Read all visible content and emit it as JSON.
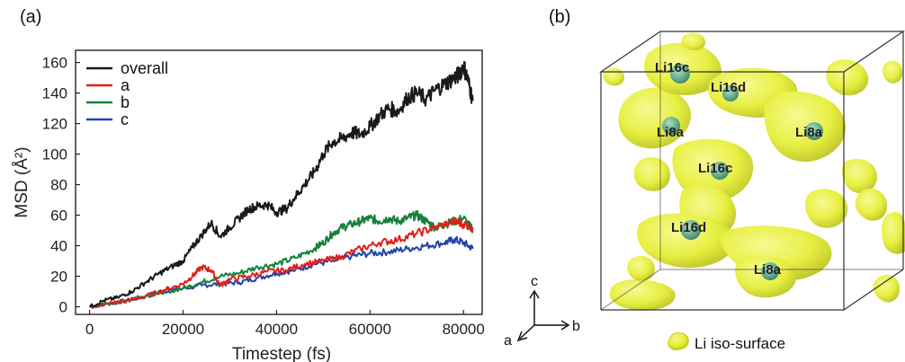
{
  "panel_a_label": "(a)",
  "panel_b_label": "(b)",
  "chart_data": {
    "type": "line",
    "title": "",
    "xlabel": "Timestep (fs)",
    "ylabel": "MSD (Å²)",
    "xlim": [
      -3000,
      84000
    ],
    "ylim": [
      -5,
      168
    ],
    "xticks": [
      0,
      20000,
      40000,
      60000,
      80000
    ],
    "yticks": [
      0,
      20,
      40,
      60,
      80,
      100,
      120,
      140,
      160
    ],
    "legend": "top-left",
    "series": [
      {
        "name": "overall",
        "color": "#1a1a1a",
        "x": [
          0,
          3000,
          6000,
          9000,
          12000,
          15000,
          18000,
          20000,
          22000,
          24000,
          26000,
          28000,
          30000,
          32000,
          34000,
          36000,
          38000,
          40000,
          42000,
          44000,
          46000,
          48000,
          50000,
          52000,
          54000,
          56000,
          58000,
          60000,
          62000,
          64000,
          66000,
          68000,
          70000,
          72000,
          74000,
          76000,
          78000,
          79000,
          80000,
          81000,
          82000
        ],
        "values": [
          0,
          4,
          6,
          10,
          16,
          22,
          27,
          30,
          39,
          47,
          55,
          46,
          52,
          58,
          64,
          66,
          67,
          62,
          64,
          72,
          80,
          88,
          100,
          108,
          110,
          114,
          113,
          118,
          125,
          130,
          128,
          137,
          140,
          136,
          142,
          146,
          150,
          152,
          158,
          148,
          135
        ]
      },
      {
        "name": "a",
        "color": "#e0201b",
        "x": [
          0,
          4000,
          8000,
          12000,
          16000,
          20000,
          22000,
          24000,
          26000,
          28000,
          30000,
          34000,
          38000,
          42000,
          46000,
          50000,
          54000,
          58000,
          62000,
          66000,
          70000,
          74000,
          78000,
          80000,
          82000
        ],
        "values": [
          0,
          2,
          4,
          7,
          11,
          15,
          20,
          26,
          24,
          14,
          18,
          20,
          23,
          24,
          28,
          30,
          33,
          38,
          42,
          44,
          48,
          52,
          56,
          54,
          52
        ]
      },
      {
        "name": "b",
        "color": "#17803a",
        "x": [
          0,
          4000,
          8000,
          12000,
          16000,
          20000,
          24000,
          28000,
          32000,
          36000,
          40000,
          44000,
          48000,
          50000,
          52000,
          54000,
          56000,
          58000,
          60000,
          62000,
          64000,
          66000,
          68000,
          70000,
          72000,
          74000,
          76000,
          78000,
          80000,
          82000
        ],
        "values": [
          0,
          2,
          4,
          7,
          10,
          12,
          16,
          20,
          22,
          26,
          28,
          32,
          38,
          42,
          48,
          52,
          54,
          56,
          58,
          56,
          58,
          56,
          58,
          60,
          56,
          52,
          54,
          56,
          58,
          50
        ]
      },
      {
        "name": "c",
        "color": "#2243a8",
        "x": [
          0,
          4000,
          8000,
          12000,
          16000,
          20000,
          24000,
          28000,
          32000,
          36000,
          40000,
          44000,
          48000,
          52000,
          56000,
          60000,
          64000,
          68000,
          72000,
          76000,
          78000,
          80000,
          82000
        ],
        "values": [
          0,
          2,
          4,
          7,
          10,
          12,
          14,
          15,
          16,
          19,
          22,
          24,
          28,
          30,
          33,
          35,
          36,
          38,
          40,
          42,
          44,
          42,
          38
        ]
      }
    ]
  },
  "structure": {
    "sites": [
      "Li16c",
      "Li16d",
      "Li8a",
      "Li8a",
      "Li16c",
      "Li16d",
      "Li8a"
    ],
    "axes": {
      "c": "c",
      "a": "a",
      "b": "b"
    },
    "legend_label": "Li iso-surface",
    "isosurface_color": "#e8ef30"
  }
}
